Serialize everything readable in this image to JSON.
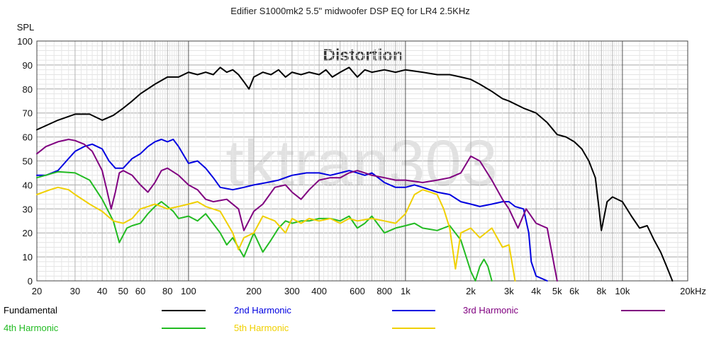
{
  "chart_data": {
    "type": "line",
    "title": "Edifier S1000mk2 5.5\" midwoofer DSP EQ for LR4 2.5KHz",
    "subtitle": "Distortion",
    "ylabel": "SPL",
    "watermark": "tktran303",
    "x_scale": "log",
    "xlim": [
      20,
      20000
    ],
    "ylim": [
      0,
      100
    ],
    "grid": true,
    "legend_position": "bottom",
    "x_ticks": [
      {
        "v": 20,
        "label": "20"
      },
      {
        "v": 30,
        "label": "30"
      },
      {
        "v": 40,
        "label": "40"
      },
      {
        "v": 50,
        "label": "50"
      },
      {
        "v": 60,
        "label": "60"
      },
      {
        "v": 80,
        "label": "80"
      },
      {
        "v": 100,
        "label": "100"
      },
      {
        "v": 200,
        "label": "200"
      },
      {
        "v": 300,
        "label": "300"
      },
      {
        "v": 400,
        "label": "400"
      },
      {
        "v": 600,
        "label": "600"
      },
      {
        "v": 800,
        "label": "800"
      },
      {
        "v": 1000,
        "label": "1k"
      },
      {
        "v": 2000,
        "label": "2k"
      },
      {
        "v": 3000,
        "label": "3k"
      },
      {
        "v": 4000,
        "label": "4k"
      },
      {
        "v": 5000,
        "label": "5k"
      },
      {
        "v": 6000,
        "label": "6k"
      },
      {
        "v": 8000,
        "label": "8k"
      },
      {
        "v": 10000,
        "label": "10k"
      },
      {
        "v": 20000,
        "label": "20kHz"
      }
    ],
    "y_ticks": [
      0,
      10,
      20,
      30,
      40,
      50,
      60,
      70,
      80,
      90,
      100
    ],
    "series": [
      {
        "name": "Fundamental",
        "color": "#000000",
        "x": [
          20,
          25,
          30,
          35,
          40,
          45,
          50,
          55,
          60,
          70,
          80,
          90,
          100,
          110,
          120,
          130,
          140,
          150,
          160,
          170,
          180,
          190,
          200,
          220,
          240,
          260,
          280,
          300,
          330,
          360,
          400,
          430,
          460,
          500,
          550,
          600,
          650,
          700,
          800,
          900,
          1000,
          1200,
          1400,
          1600,
          1800,
          2000,
          2200,
          2500,
          2800,
          3000,
          3500,
          4000,
          4500,
          5000,
          5500,
          6000,
          6500,
          7000,
          7500,
          7800,
          8000,
          8500,
          9000,
          10000,
          11000,
          12000,
          13000,
          14000,
          15000,
          16000,
          17000
        ],
        "y": [
          63,
          67,
          69.5,
          69.5,
          67,
          69,
          72,
          75,
          78,
          82,
          85,
          85,
          87,
          86,
          87,
          86,
          89,
          87,
          88,
          86,
          83,
          80,
          85,
          87,
          86,
          88,
          85,
          87,
          86,
          87,
          86,
          88,
          85,
          87,
          89,
          85,
          88,
          87,
          88,
          87,
          88,
          87,
          86,
          86,
          85,
          84,
          82,
          79,
          76,
          75,
          72,
          70,
          66,
          61,
          60,
          58,
          55,
          50,
          43,
          30,
          21,
          33,
          35,
          33,
          27,
          22,
          23,
          17,
          12,
          6,
          0
        ]
      },
      {
        "name": "2nd Harmonic",
        "color": "#0000e0",
        "x": [
          20,
          22,
          25,
          28,
          30,
          33,
          36,
          40,
          43,
          46,
          50,
          55,
          60,
          65,
          70,
          75,
          80,
          85,
          90,
          100,
          110,
          120,
          130,
          140,
          160,
          180,
          200,
          230,
          260,
          300,
          350,
          400,
          450,
          500,
          550,
          600,
          650,
          700,
          800,
          900,
          1000,
          1100,
          1200,
          1400,
          1600,
          1800,
          2000,
          2200,
          2500,
          2800,
          3000,
          3200,
          3500,
          3700,
          3800,
          4000,
          4500
        ],
        "y": [
          44,
          44,
          46,
          51,
          54,
          56,
          57,
          55,
          50,
          47,
          47,
          51,
          53,
          56,
          58,
          59,
          58,
          59,
          56,
          49,
          50,
          47,
          43,
          39,
          38,
          39,
          40,
          41,
          42,
          44,
          45,
          45,
          44,
          45,
          46,
          45,
          44,
          45,
          41,
          39,
          39,
          40,
          39,
          37,
          36,
          33,
          32,
          31,
          32,
          33,
          33,
          31,
          30,
          20,
          8,
          2,
          0
        ]
      },
      {
        "name": "3rd Harmonic",
        "color": "#800080",
        "x": [
          20,
          22,
          25,
          28,
          30,
          33,
          36,
          40,
          42,
          44,
          46,
          48,
          50,
          55,
          60,
          65,
          70,
          75,
          80,
          90,
          100,
          110,
          120,
          130,
          150,
          170,
          180,
          200,
          220,
          250,
          280,
          300,
          330,
          360,
          400,
          450,
          500,
          550,
          600,
          650,
          700,
          800,
          900,
          1000,
          1200,
          1400,
          1600,
          1800,
          2000,
          2200,
          2500,
          2800,
          3000,
          3300,
          3600,
          4000,
          4500,
          5000
        ],
        "y": [
          53,
          56,
          58,
          59,
          58.5,
          57,
          54,
          46,
          38,
          30,
          37,
          45,
          46,
          44,
          40,
          37,
          41,
          46,
          47,
          44,
          40,
          38,
          34,
          33,
          34,
          30,
          21,
          29,
          32,
          39,
          40,
          37,
          34,
          38,
          42,
          43,
          43,
          45,
          46,
          45,
          44,
          43,
          42,
          42,
          41,
          42,
          43,
          45,
          52,
          50,
          42,
          34,
          30,
          22,
          30,
          24,
          22,
          0
        ]
      },
      {
        "name": "4th Harmonic",
        "color": "#22bb22",
        "x": [
          20,
          25,
          30,
          35,
          40,
          45,
          48,
          52,
          55,
          60,
          65,
          70,
          75,
          80,
          85,
          90,
          100,
          110,
          120,
          140,
          150,
          160,
          180,
          200,
          220,
          240,
          260,
          280,
          300,
          330,
          360,
          400,
          450,
          500,
          550,
          600,
          650,
          700,
          800,
          900,
          1000,
          1100,
          1200,
          1400,
          1600,
          1800,
          2000,
          2100,
          2200,
          2300,
          2400,
          2500
        ],
        "y": [
          43,
          45.5,
          45,
          42,
          34,
          25,
          16,
          22,
          23,
          24,
          28,
          31,
          33,
          31,
          29,
          26,
          27,
          25,
          28,
          20,
          15,
          18,
          10,
          20,
          12,
          17,
          22,
          25,
          24,
          25,
          25,
          26,
          26,
          25,
          27,
          22,
          24,
          27,
          20,
          22,
          23,
          24,
          22,
          21,
          23,
          17,
          4,
          0,
          6,
          9,
          6,
          0
        ]
      },
      {
        "name": "5th Harmonic",
        "color": "#f0d000",
        "x": [
          20,
          23,
          25,
          28,
          30,
          35,
          40,
          45,
          50,
          55,
          60,
          65,
          70,
          75,
          80,
          90,
          100,
          110,
          120,
          140,
          160,
          170,
          180,
          200,
          220,
          250,
          280,
          300,
          330,
          360,
          400,
          450,
          500,
          550,
          600,
          700,
          800,
          900,
          1000,
          1100,
          1200,
          1300,
          1400,
          1500,
          1600,
          1700,
          1800,
          2000,
          2200,
          2500,
          2800,
          3000,
          3200
        ],
        "y": [
          36,
          38,
          39,
          38,
          36,
          32,
          29,
          25,
          24,
          26,
          30,
          31,
          32,
          31,
          30,
          31,
          32,
          33,
          31,
          29,
          20,
          13,
          18,
          20,
          27,
          25,
          20,
          26,
          24,
          26,
          25,
          26,
          24,
          26,
          25,
          26,
          25,
          24,
          28,
          36,
          38,
          37,
          36,
          30,
          22,
          5,
          20,
          22,
          18,
          22,
          14,
          15,
          0
        ]
      }
    ]
  }
}
